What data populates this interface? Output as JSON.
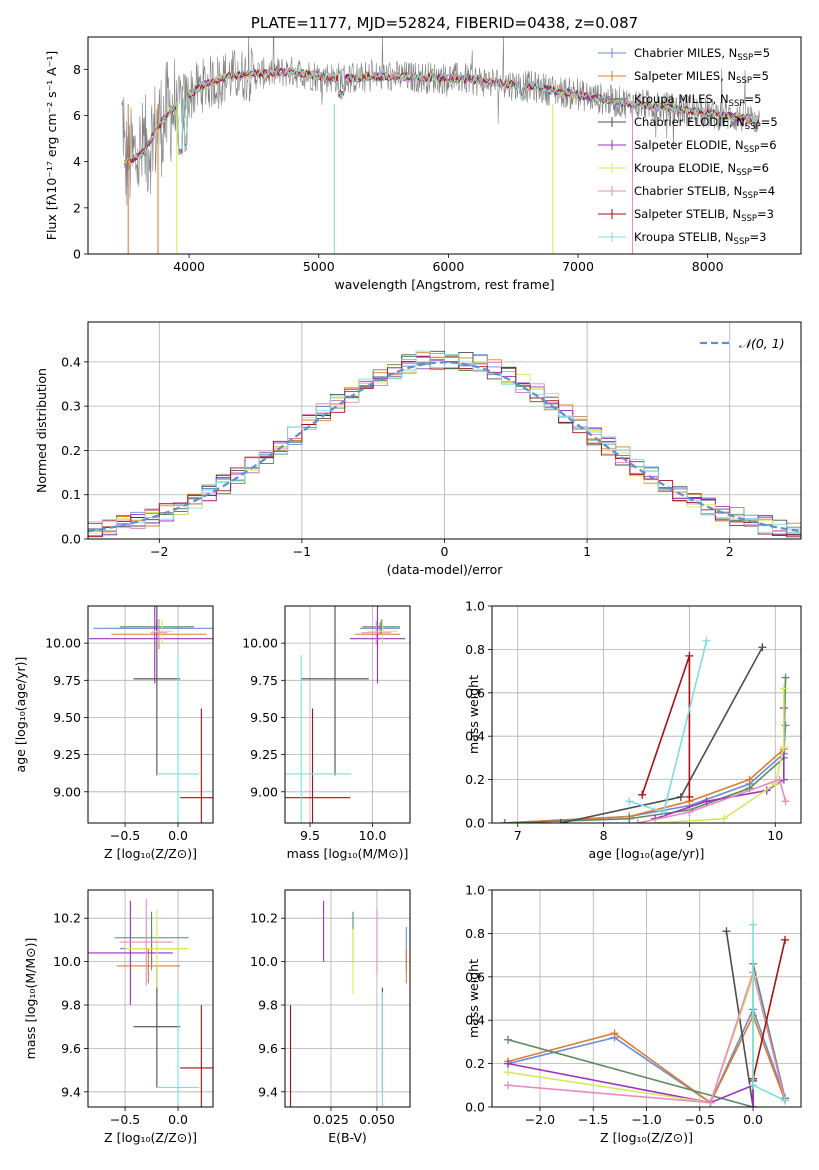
{
  "colors": {
    "Chabrier MILES": "#6a8cd8",
    "Salpeter MILES": "#e07b2e",
    "Kroupa MILES": "#5e8a60",
    "Chabrier ELODIE": "#4d4d4d",
    "Salpeter ELODIE": "#9a32c0",
    "Kroupa ELODIE": "#d8e85a",
    "Chabrier STELIB": "#e58cc3",
    "Salpeter STELIB": "#a61212",
    "Kroupa STELIB": "#80dede",
    "gray_spectrum": "#808080",
    "gaussian": "#5b8fd6"
  },
  "chart_data": [
    {
      "id": "spectrum",
      "type": "line",
      "title": "PLATE=1177, MJD=52824, FIBERID=0438, z=0.087",
      "xlabel": "wavelength [Angstrom, rest frame]",
      "ylabel": "Flux [fλ10⁻¹⁷ erg cm⁻² s⁻¹ A⁻¹]",
      "xlim": [
        3220,
        8720
      ],
      "ylim": [
        0,
        9.4
      ],
      "xticks": [
        "4000",
        "5000",
        "6000",
        "7000",
        "8000"
      ],
      "yticks": [
        "0",
        "2",
        "4",
        "6",
        "8"
      ],
      "legend": [
        {
          "label": "Chabrier MILES, N",
          "sub": "SSP",
          "post": "=5",
          "key": "Chabrier MILES"
        },
        {
          "label": "Salpeter MILES, N",
          "sub": "SSP",
          "post": "=5",
          "key": "Salpeter MILES"
        },
        {
          "label": "Kroupa MILES, N",
          "sub": "SSP",
          "post": "=5",
          "key": "Kroupa MILES"
        },
        {
          "label": "Chabrier ELODIE, N",
          "sub": "SSP",
          "post": "=5",
          "key": "Chabrier ELODIE"
        },
        {
          "label": "Salpeter ELODIE, N",
          "sub": "SSP",
          "post": "=6",
          "key": "Salpeter ELODIE"
        },
        {
          "label": "Kroupa ELODIE, N",
          "sub": "SSP",
          "post": "=6",
          "key": "Kroupa ELODIE"
        },
        {
          "label": "Chabrier STELIB, N",
          "sub": "SSP",
          "post": "=4",
          "key": "Chabrier STELIB"
        },
        {
          "label": "Salpeter STELIB, N",
          "sub": "SSP",
          "post": "=3",
          "key": "Salpeter STELIB"
        },
        {
          "label": "Kroupa STELIB, N",
          "sub": "SSP",
          "post": "=3",
          "key": "Kroupa STELIB"
        }
      ],
      "continuum": [
        [
          3500,
          3.9
        ],
        [
          3650,
          4.4
        ],
        [
          3750,
          5.4
        ],
        [
          3850,
          6.2
        ],
        [
          3950,
          6.7
        ],
        [
          4100,
          7.3
        ],
        [
          4300,
          7.7
        ],
        [
          4500,
          7.8
        ],
        [
          4800,
          7.9
        ],
        [
          5000,
          7.7
        ],
        [
          5200,
          7.6
        ],
        [
          5500,
          7.7
        ],
        [
          5800,
          7.65
        ],
        [
          6100,
          7.6
        ],
        [
          6400,
          7.4
        ],
        [
          6700,
          7.2
        ],
        [
          7000,
          6.9
        ],
        [
          7300,
          6.6
        ],
        [
          7600,
          6.4
        ],
        [
          8000,
          6.1
        ],
        [
          8400,
          5.8
        ]
      ]
    },
    {
      "id": "residuals",
      "type": "bar",
      "xlabel": "(data-model)/error",
      "ylabel": "Normed distribution",
      "xlim": [
        -2.5,
        2.5
      ],
      "ylim": [
        0,
        0.49
      ],
      "xticks": [
        "−2",
        "−1",
        "0",
        "1",
        "2"
      ],
      "yticks": [
        "0.0",
        "0.1",
        "0.2",
        "0.3",
        "0.4"
      ],
      "legend": [
        {
          "label": "𝒩(0, 1)",
          "key": "gaussian"
        }
      ]
    },
    {
      "id": "age-vs-Z",
      "type": "scatter",
      "xlabel": "Z [log₁₀(Z/Z⊙)]",
      "ylabel": "age  [log₁₀(age/yr)]",
      "xlim": [
        -0.85,
        0.33
      ],
      "ylim": [
        8.79,
        10.25
      ],
      "xticks": [
        "−0.5",
        "0.0"
      ],
      "yticks": [
        "9.00",
        "9.25",
        "9.50",
        "9.75",
        "10.00"
      ],
      "points": [
        {
          "key": "Chabrier MILES",
          "x": -0.2,
          "y": 10.1,
          "xerr": 0.6,
          "yerr": 0.04
        },
        {
          "key": "Salpeter MILES",
          "x": -0.18,
          "y": 10.06,
          "xerr": 0.45,
          "yerr": 0.1
        },
        {
          "key": "Kroupa MILES",
          "x": -0.2,
          "y": 10.11,
          "xerr": 0.35,
          "yerr": 0.05
        },
        {
          "key": "Chabrier ELODIE",
          "x": -0.2,
          "y": 9.76,
          "xerr": 0.22,
          "yerr": 0.65
        },
        {
          "key": "Salpeter ELODIE",
          "x": -0.22,
          "y": 10.03,
          "xerr": 0.62,
          "yerr": 0.3
        },
        {
          "key": "Kroupa ELODIE",
          "x": -0.15,
          "y": 10.08,
          "xerr": 0.1,
          "yerr": 0.08
        },
        {
          "key": "Chabrier STELIB",
          "x": -0.18,
          "y": 10.07,
          "xerr": 0.08,
          "yerr": 0.08
        },
        {
          "key": "Salpeter STELIB",
          "x": 0.22,
          "y": 8.96,
          "xerr": 0.2,
          "yerr": 0.6
        },
        {
          "key": "Kroupa STELIB",
          "x": 0.0,
          "y": 9.12,
          "xerr": 0.2,
          "yerr": 0.8
        }
      ]
    },
    {
      "id": "age-vs-mass",
      "type": "scatter",
      "xlabel": "mass [log₁₀(M/M⊙)]",
      "ylabel": "",
      "xlim": [
        9.3,
        10.3
      ],
      "ylim": [
        8.79,
        10.25
      ],
      "xticks": [
        "9.5",
        "10.0"
      ],
      "yticks": [
        "9.00",
        "9.25",
        "9.50",
        "9.75",
        "10.00"
      ],
      "points": [
        {
          "key": "Chabrier MILES",
          "x": 10.06,
          "y": 10.1,
          "xerr": 0.16,
          "yerr": 0.04
        },
        {
          "key": "Salpeter MILES",
          "x": 10.04,
          "y": 10.06,
          "xerr": 0.18,
          "yerr": 0.1
        },
        {
          "key": "Kroupa MILES",
          "x": 10.07,
          "y": 10.11,
          "xerr": 0.15,
          "yerr": 0.05
        },
        {
          "key": "Chabrier ELODIE",
          "x": 9.7,
          "y": 9.76,
          "xerr": 0.27,
          "yerr": 0.65
        },
        {
          "key": "Salpeter ELODIE",
          "x": 10.04,
          "y": 10.03,
          "xerr": 0.22,
          "yerr": 0.3
        },
        {
          "key": "Kroupa ELODIE",
          "x": 10.08,
          "y": 10.08,
          "xerr": 0.12,
          "yerr": 0.08
        },
        {
          "key": "Chabrier STELIB",
          "x": 10.03,
          "y": 10.07,
          "xerr": 0.12,
          "yerr": 0.08
        },
        {
          "key": "Salpeter STELIB",
          "x": 9.52,
          "y": 8.96,
          "xerr": 0.3,
          "yerr": 0.6
        },
        {
          "key": "Kroupa STELIB",
          "x": 9.43,
          "y": 9.12,
          "xerr": 0.4,
          "yerr": 0.8
        }
      ]
    },
    {
      "id": "massweight-vs-age",
      "type": "line",
      "xlabel": "age  [log₁₀(age/yr)]",
      "ylabel": "mass weight",
      "xlim": [
        6.7,
        10.3
      ],
      "ylim": [
        0,
        1.0
      ],
      "xticks": [
        "7",
        "8",
        "9",
        "10"
      ],
      "yticks": [
        "0.0",
        "0.2",
        "0.4",
        "0.6",
        "0.8",
        "1.0"
      ],
      "series": [
        {
          "key": "Chabrier MILES",
          "x": [
            6.85,
            8.3,
            9.0,
            9.7,
            10.1,
            10.12
          ],
          "y": [
            0.0,
            0.03,
            0.08,
            0.18,
            0.32,
            0.45
          ]
        },
        {
          "key": "Salpeter MILES",
          "x": [
            6.85,
            8.3,
            9.0,
            9.7,
            10.1
          ],
          "y": [
            0.0,
            0.03,
            0.1,
            0.2,
            0.34
          ]
        },
        {
          "key": "Kroupa MILES",
          "x": [
            6.85,
            8.3,
            9.0,
            9.7,
            10.1,
            10.12
          ],
          "y": [
            0.0,
            0.02,
            0.06,
            0.16,
            0.3,
            0.67
          ]
        },
        {
          "key": "Chabrier ELODIE",
          "x": [
            7.5,
            8.9,
            9.85
          ],
          "y": [
            0.0,
            0.12,
            0.81
          ]
        },
        {
          "key": "Salpeter ELODIE",
          "x": [
            8.6,
            9.2,
            9.9,
            10.1,
            10.1
          ],
          "y": [
            0.02,
            0.1,
            0.15,
            0.2,
            0.53
          ]
        },
        {
          "key": "Kroupa ELODIE",
          "x": [
            8.6,
            9.4,
            10.0,
            10.1,
            10.1
          ],
          "y": [
            0.0,
            0.02,
            0.18,
            0.35,
            0.62
          ]
        },
        {
          "key": "Chabrier STELIB",
          "x": [
            8.4,
            9.0,
            10.05,
            10.12
          ],
          "y": [
            0.0,
            0.05,
            0.2,
            0.1
          ]
        },
        {
          "key": "Salpeter STELIB",
          "x": [
            8.45,
            9.0,
            9.0
          ],
          "y": [
            0.13,
            0.77,
            0.12
          ]
        },
        {
          "key": "Kroupa STELIB",
          "x": [
            8.3,
            8.7,
            9.2
          ],
          "y": [
            0.1,
            0.05,
            0.84
          ]
        }
      ]
    },
    {
      "id": "mass-vs-Z",
      "type": "scatter",
      "xlabel": "Z [log₁₀(Z/Z⊙)]",
      "ylabel": "mass [log₁₀(M/M⊙)]",
      "xlim": [
        -0.85,
        0.33
      ],
      "ylim": [
        9.33,
        10.33
      ],
      "xticks": [
        "−0.5",
        "0.0"
      ],
      "yticks": [
        "9.4",
        "9.6",
        "9.8",
        "10.0",
        "10.2"
      ],
      "points": [
        {
          "key": "Chabrier MILES",
          "x": -0.25,
          "y": 10.06,
          "xerr": 0.3,
          "yerr": 0.1
        },
        {
          "key": "Salpeter MILES",
          "x": -0.28,
          "y": 9.98,
          "xerr": 0.3,
          "yerr": 0.08
        },
        {
          "key": "Kroupa MILES",
          "x": -0.25,
          "y": 10.11,
          "xerr": 0.35,
          "yerr": 0.12
        },
        {
          "key": "Chabrier ELODIE",
          "x": -0.2,
          "y": 9.7,
          "xerr": 0.22,
          "yerr": 0.28
        },
        {
          "key": "Salpeter ELODIE",
          "x": -0.45,
          "y": 10.04,
          "xerr": 0.4,
          "yerr": 0.24
        },
        {
          "key": "Kroupa ELODIE",
          "x": -0.2,
          "y": 10.06,
          "xerr": 0.3,
          "yerr": 0.18
        },
        {
          "key": "Chabrier STELIB",
          "x": -0.3,
          "y": 10.09,
          "xerr": 0.25,
          "yerr": 0.2
        },
        {
          "key": "Salpeter STELIB",
          "x": 0.22,
          "y": 9.51,
          "xerr": 0.2,
          "yerr": 0.29
        },
        {
          "key": "Kroupa STELIB",
          "x": 0.0,
          "y": 9.42,
          "xerr": 0.2,
          "yerr": 0.44
        }
      ]
    },
    {
      "id": "mass-vs-EBV",
      "type": "scatter",
      "xlabel": "E(B-V)",
      "ylabel": "",
      "xlim": [
        0.0,
        0.068
      ],
      "ylim": [
        9.33,
        10.33
      ],
      "xticks": [
        "0.025",
        "0.050"
      ],
      "yticks": [
        "9.4",
        "9.6",
        "9.8",
        "10.0",
        "10.2"
      ],
      "points": [
        {
          "key": "Chabrier MILES",
          "x": 0.066,
          "y": 10.06,
          "xerr": 0.0,
          "yerr": 0.1
        },
        {
          "key": "Salpeter MILES",
          "x": 0.066,
          "y": 9.98,
          "xerr": 0.0,
          "yerr": 0.08
        },
        {
          "key": "Kroupa MILES",
          "x": 0.037,
          "y": 10.11,
          "xerr": 0.0,
          "yerr": 0.12
        },
        {
          "key": "Chabrier ELODIE",
          "x": 0.053,
          "y": 9.64,
          "xerr": 0.0,
          "yerr": 0.24
        },
        {
          "key": "Salpeter ELODIE",
          "x": 0.021,
          "y": 10.14,
          "xerr": 0.0,
          "yerr": 0.14
        },
        {
          "key": "Kroupa ELODIE",
          "x": 0.037,
          "y": 10.0,
          "xerr": 0.0,
          "yerr": 0.15
        },
        {
          "key": "Chabrier STELIB",
          "x": 0.05,
          "y": 10.09,
          "xerr": 0.0,
          "yerr": 0.15
        },
        {
          "key": "Salpeter STELIB",
          "x": 0.003,
          "y": 9.55,
          "xerr": 0.0,
          "yerr": 0.25
        },
        {
          "key": "Kroupa STELIB",
          "x": 0.053,
          "y": 9.42,
          "xerr": 0.0,
          "yerr": 0.44
        }
      ]
    },
    {
      "id": "massweight-vs-Z",
      "type": "line",
      "xlabel": "Z [log₁₀(Z/Z⊙)]",
      "ylabel": "mass weight",
      "xlim": [
        -2.45,
        0.45
      ],
      "ylim": [
        0,
        1.0
      ],
      "xticks": [
        "−2.0",
        "−1.5",
        "−1.0",
        "−0.5",
        "0.0"
      ],
      "yticks": [
        "0.0",
        "0.2",
        "0.4",
        "0.6",
        "0.8",
        "1.0"
      ],
      "series": [
        {
          "key": "Chabrier MILES",
          "x": [
            -2.3,
            -1.3,
            -0.4,
            0.0,
            0.3
          ],
          "y": [
            0.2,
            0.32,
            0.02,
            0.45,
            0.04
          ]
        },
        {
          "key": "Salpeter MILES",
          "x": [
            -2.3,
            -1.3,
            -0.4,
            0.0,
            0.3
          ],
          "y": [
            0.21,
            0.34,
            0.02,
            0.42,
            0.03
          ]
        },
        {
          "key": "Kroupa MILES",
          "x": [
            -2.3,
            0.0,
            0.0,
            0.3
          ],
          "y": [
            0.31,
            0.0,
            0.66,
            0.04
          ]
        },
        {
          "key": "Chabrier ELODIE",
          "x": [
            -0.25,
            0.0,
            0.0
          ],
          "y": [
            0.81,
            0.0,
            0.12
          ]
        },
        {
          "key": "Salpeter ELODIE",
          "x": [
            -2.3,
            -0.4,
            0.0,
            0.0
          ],
          "y": [
            0.2,
            0.02,
            0.1,
            0.0
          ]
        },
        {
          "key": "Kroupa ELODIE",
          "x": [
            -2.3,
            -0.4,
            0.0,
            0.0
          ],
          "y": [
            0.16,
            0.02,
            0.6,
            0.1
          ]
        },
        {
          "key": "Chabrier STELIB",
          "x": [
            -2.3,
            -0.4,
            0.0,
            0.3
          ],
          "y": [
            0.1,
            0.02,
            0.62,
            0.03
          ]
        },
        {
          "key": "Salpeter STELIB",
          "x": [
            0.0,
            0.3
          ],
          "y": [
            0.13,
            0.77
          ]
        },
        {
          "key": "Kroupa STELIB",
          "x": [
            0.0,
            0.0,
            0.3
          ],
          "y": [
            0.84,
            0.1,
            0.03
          ]
        }
      ]
    }
  ]
}
